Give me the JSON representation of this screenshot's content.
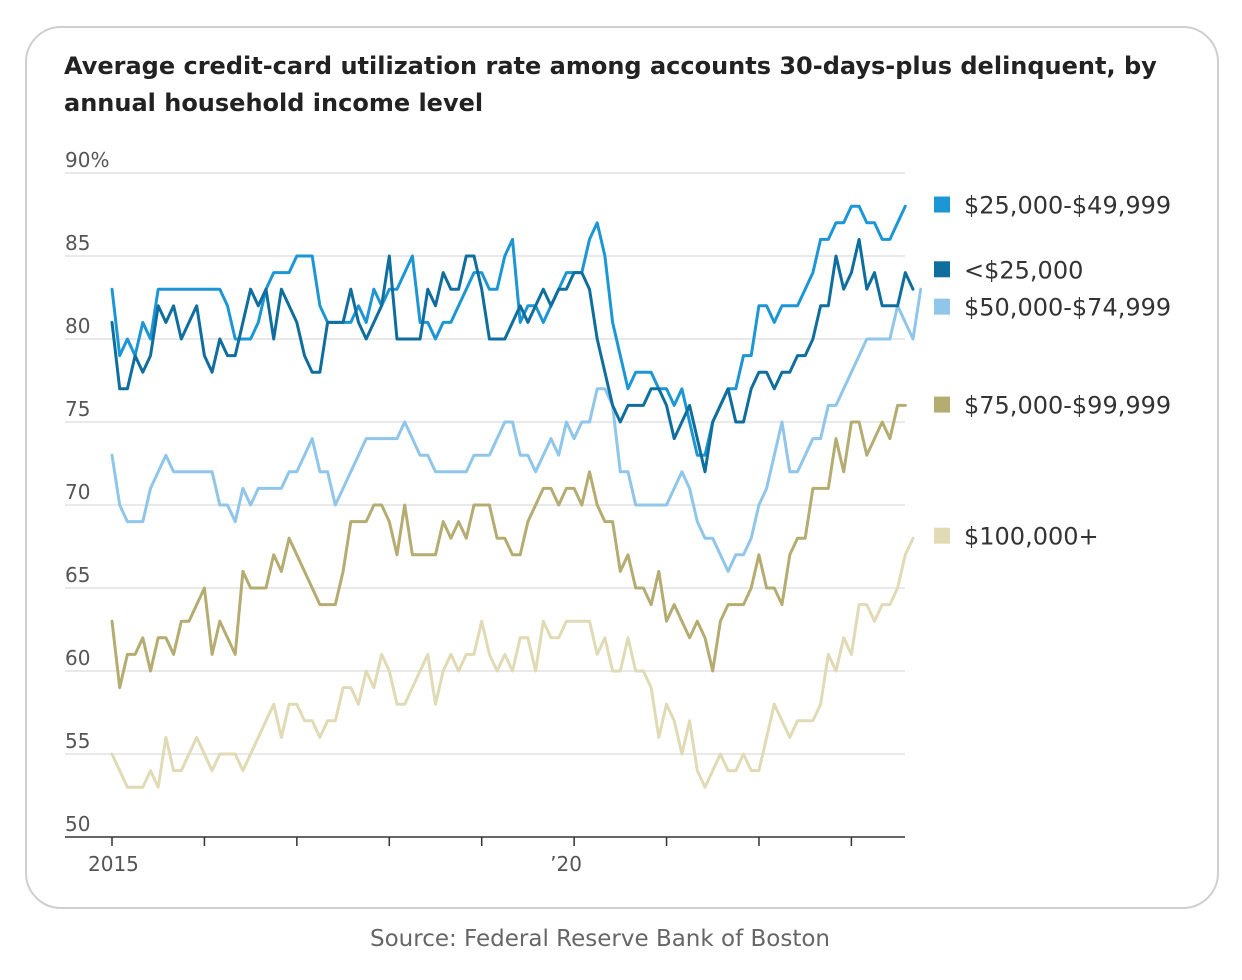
{
  "chart_data": {
    "type": "line",
    "title": "Average credit-card utilization rate among accounts 30-days-plus delinquent, by annual household income level",
    "source": "Source: Federal Reserve Bank of Boston",
    "ylim": [
      50,
      90
    ],
    "yticks": [
      "90%",
      "85",
      "80",
      "75",
      "70",
      "65",
      "60",
      "55",
      "50"
    ],
    "xlim": [
      2015.0,
      2023.58
    ],
    "x_start": 2015.0,
    "x_step": 0.08333,
    "xtick_positions": [
      2015,
      2016,
      2017,
      2018,
      2019,
      2020,
      2021,
      2022,
      2023
    ],
    "xtick_labels": [
      {
        "x": 2015,
        "label": "2015"
      },
      {
        "x": 2020,
        "label": "’20"
      }
    ],
    "grid": true,
    "legend": "right",
    "series": [
      {
        "name": "$25,000-$49,999",
        "color": "#1c96d4",
        "values": [
          83,
          79,
          80,
          79,
          81,
          80,
          83,
          83,
          83,
          83,
          83,
          83,
          83,
          83,
          83,
          82,
          80,
          80,
          80,
          81,
          83,
          84,
          84,
          84,
          85,
          85,
          85,
          82,
          81,
          81,
          81,
          81,
          82,
          81,
          83,
          82,
          83,
          83,
          84,
          85,
          81,
          81,
          80,
          81,
          81,
          82,
          83,
          84,
          84,
          83,
          83,
          85,
          86,
          81,
          82,
          82,
          81,
          82,
          83,
          84,
          84,
          84,
          86,
          87,
          85,
          81,
          79,
          77,
          78,
          78,
          78,
          77,
          77,
          76,
          77,
          75,
          73,
          73,
          75,
          76,
          77,
          77,
          79,
          79,
          82,
          82,
          81,
          82,
          82,
          82,
          83,
          84,
          86,
          86,
          87,
          87,
          88,
          88,
          87,
          87,
          86,
          86,
          87,
          88
        ]
      },
      {
        "name": "<$25,000",
        "color": "#0f6e9e",
        "values": [
          81,
          77,
          77,
          79,
          78,
          79,
          82,
          81,
          82,
          80,
          81,
          82,
          79,
          78,
          80,
          79,
          79,
          81,
          83,
          82,
          83,
          80,
          83,
          82,
          81,
          79,
          78,
          78,
          81,
          81,
          81,
          83,
          81,
          80,
          81,
          82,
          85,
          80,
          80,
          80,
          80,
          83,
          82,
          84,
          83,
          83,
          85,
          85,
          83,
          80,
          80,
          80,
          81,
          82,
          81,
          82,
          83,
          82,
          83,
          83,
          84,
          84,
          83,
          80,
          78,
          76,
          75,
          76,
          76,
          76,
          77,
          77,
          76,
          74,
          75,
          76,
          74,
          72,
          75,
          76,
          77,
          75,
          75,
          77,
          78,
          78,
          77,
          78,
          78,
          79,
          79,
          80,
          82,
          82,
          85,
          83,
          84,
          86,
          83,
          84,
          82,
          82,
          82,
          84,
          83
        ]
      },
      {
        "name": "$50,000-$74,999",
        "color": "#8fc6ea",
        "values": [
          73,
          70,
          69,
          69,
          69,
          71,
          72,
          73,
          72,
          72,
          72,
          72,
          72,
          72,
          70,
          70,
          69,
          71,
          70,
          71,
          71,
          71,
          71,
          72,
          72,
          73,
          74,
          72,
          72,
          70,
          71,
          72,
          73,
          74,
          74,
          74,
          74,
          74,
          75,
          74,
          73,
          73,
          72,
          72,
          72,
          72,
          72,
          73,
          73,
          73,
          74,
          75,
          75,
          73,
          73,
          72,
          73,
          74,
          73,
          75,
          74,
          75,
          75,
          77,
          77,
          76,
          72,
          72,
          70,
          70,
          70,
          70,
          70,
          71,
          72,
          71,
          69,
          68,
          68,
          67,
          66,
          67,
          67,
          68,
          70,
          71,
          73,
          75,
          72,
          72,
          73,
          74,
          74,
          76,
          76,
          77,
          78,
          79,
          80,
          80,
          80,
          80,
          82,
          81,
          80,
          83
        ]
      },
      {
        "name": "$75,000-$99,999",
        "color": "#b5ac72",
        "values": [
          63,
          59,
          61,
          61,
          62,
          60,
          62,
          62,
          61,
          63,
          63,
          64,
          65,
          61,
          63,
          62,
          61,
          66,
          65,
          65,
          65,
          67,
          66,
          68,
          67,
          66,
          65,
          64,
          64,
          64,
          66,
          69,
          69,
          69,
          70,
          70,
          69,
          67,
          70,
          67,
          67,
          67,
          67,
          69,
          68,
          69,
          68,
          70,
          70,
          70,
          68,
          68,
          67,
          67,
          69,
          70,
          71,
          71,
          70,
          71,
          71,
          70,
          72,
          70,
          69,
          69,
          66,
          67,
          65,
          65,
          64,
          66,
          63,
          64,
          63,
          62,
          63,
          62,
          60,
          63,
          64,
          64,
          64,
          65,
          67,
          65,
          65,
          64,
          67,
          68,
          68,
          71,
          71,
          71,
          74,
          72,
          75,
          75,
          73,
          74,
          75,
          74,
          76,
          76
        ]
      },
      {
        "name": "$100,000+",
        "color": "#e0dab5",
        "values": [
          55,
          54,
          53,
          53,
          53,
          54,
          53,
          56,
          54,
          54,
          55,
          56,
          55,
          54,
          55,
          55,
          55,
          54,
          55,
          56,
          57,
          58,
          56,
          58,
          58,
          57,
          57,
          56,
          57,
          57,
          59,
          59,
          58,
          60,
          59,
          61,
          60,
          58,
          58,
          59,
          60,
          61,
          58,
          60,
          61,
          60,
          61,
          61,
          63,
          61,
          60,
          61,
          60,
          62,
          62,
          60,
          63,
          62,
          62,
          63,
          63,
          63,
          63,
          61,
          62,
          60,
          60,
          62,
          60,
          60,
          59,
          56,
          58,
          57,
          55,
          57,
          54,
          53,
          54,
          55,
          54,
          54,
          55,
          54,
          54,
          56,
          58,
          57,
          56,
          57,
          57,
          57,
          58,
          61,
          60,
          62,
          61,
          64,
          64,
          63,
          64,
          64,
          65,
          67,
          68
        ]
      }
    ],
    "legend_entries": [
      {
        "label": "$25,000-$49,999",
        "color": "#1c96d4",
        "y_value": 88.1
      },
      {
        "label": "<$25,000",
        "color": "#0f6e9e",
        "y_value": 84.2
      },
      {
        "label": "$50,000-$74,999",
        "color": "#8fc6ea",
        "y_value": 81.95
      },
      {
        "label": "$75,000-$99,999",
        "color": "#b5ac72",
        "y_value": 76.05
      },
      {
        "label": "$100,000+",
        "color": "#e0dab5",
        "y_value": 68.15
      }
    ]
  }
}
